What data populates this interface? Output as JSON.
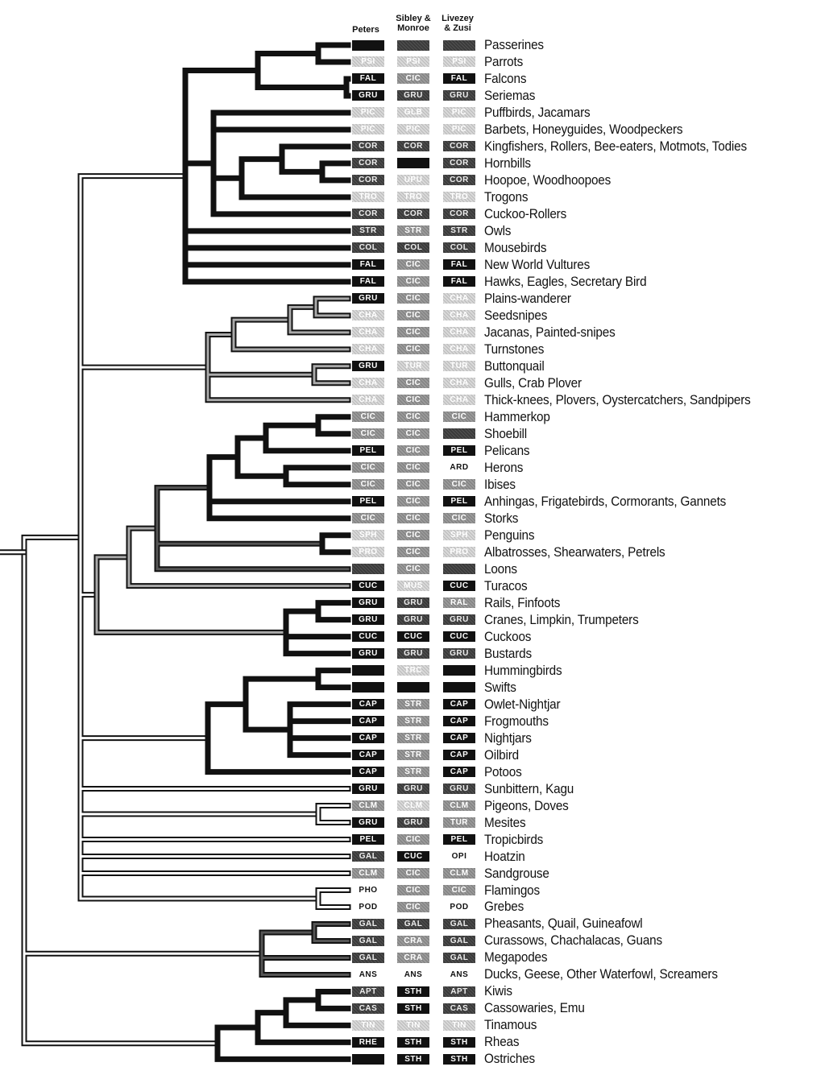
{
  "headers": {
    "peters": "Peters",
    "sibley": [
      "Sibley &",
      "Monroe"
    ],
    "livezey": [
      "Livezey",
      "& Zusi"
    ]
  },
  "rows": [
    {
      "name": "Passerines",
      "p": {
        "t": "",
        "s": "black"
      },
      "s": {
        "t": "",
        "s": "dark"
      },
      "l": {
        "t": "",
        "s": "dark"
      }
    },
    {
      "name": "Parrots",
      "p": {
        "t": "PSI",
        "s": "light"
      },
      "s": {
        "t": "PSI",
        "s": "light"
      },
      "l": {
        "t": "PSI",
        "s": "light"
      }
    },
    {
      "name": "Falcons",
      "p": {
        "t": "FAL",
        "s": "black"
      },
      "s": {
        "t": "CIC",
        "s": "mid"
      },
      "l": {
        "t": "FAL",
        "s": "black"
      }
    },
    {
      "name": "Seriemas",
      "p": {
        "t": "GRU",
        "s": "black"
      },
      "s": {
        "t": "GRU",
        "s": "dark"
      },
      "l": {
        "t": "GRU",
        "s": "dark"
      }
    },
    {
      "name": "Puffbirds, Jacamars",
      "p": {
        "t": "PIC",
        "s": "light"
      },
      "s": {
        "t": "GLB",
        "s": "light"
      },
      "l": {
        "t": "PIC",
        "s": "light"
      }
    },
    {
      "name": "Barbets, Honeyguides, Woodpeckers",
      "p": {
        "t": "PIC",
        "s": "light"
      },
      "s": {
        "t": "PIC",
        "s": "light"
      },
      "l": {
        "t": "PIC",
        "s": "light"
      }
    },
    {
      "name": "Kingfishers, Rollers, Bee-eaters, Motmots, Todies",
      "p": {
        "t": "COR",
        "s": "dark"
      },
      "s": {
        "t": "COR",
        "s": "dark"
      },
      "l": {
        "t": "COR",
        "s": "dark"
      }
    },
    {
      "name": "Hornbills",
      "p": {
        "t": "COR",
        "s": "dark"
      },
      "s": {
        "t": "",
        "s": "black"
      },
      "l": {
        "t": "COR",
        "s": "dark"
      }
    },
    {
      "name": "Hoopoe, Woodhoopoes",
      "p": {
        "t": "COR",
        "s": "dark"
      },
      "s": {
        "t": "UPU",
        "s": "light"
      },
      "l": {
        "t": "COR",
        "s": "dark"
      }
    },
    {
      "name": "Trogons",
      "p": {
        "t": "TRO",
        "s": "light"
      },
      "s": {
        "t": "TRO",
        "s": "light"
      },
      "l": {
        "t": "TRO",
        "s": "light"
      }
    },
    {
      "name": "Cuckoo-Rollers",
      "p": {
        "t": "COR",
        "s": "dark"
      },
      "s": {
        "t": "COR",
        "s": "dark"
      },
      "l": {
        "t": "COR",
        "s": "dark"
      }
    },
    {
      "name": "Owls",
      "p": {
        "t": "STR",
        "s": "dark"
      },
      "s": {
        "t": "STR",
        "s": "mid"
      },
      "l": {
        "t": "STR",
        "s": "dark"
      }
    },
    {
      "name": "Mousebirds",
      "p": {
        "t": "COL",
        "s": "dark"
      },
      "s": {
        "t": "COL",
        "s": "dark"
      },
      "l": {
        "t": "COL",
        "s": "dark"
      }
    },
    {
      "name": "New World Vultures",
      "p": {
        "t": "FAL",
        "s": "black"
      },
      "s": {
        "t": "CIC",
        "s": "mid"
      },
      "l": {
        "t": "FAL",
        "s": "black"
      }
    },
    {
      "name": "Hawks, Eagles, Secretary Bird",
      "p": {
        "t": "FAL",
        "s": "black"
      },
      "s": {
        "t": "CIC",
        "s": "mid"
      },
      "l": {
        "t": "FAL",
        "s": "black"
      }
    },
    {
      "name": "Plains-wanderer",
      "p": {
        "t": "GRU",
        "s": "black"
      },
      "s": {
        "t": "CIC",
        "s": "mid"
      },
      "l": {
        "t": "CHA",
        "s": "light"
      }
    },
    {
      "name": "Seedsnipes",
      "p": {
        "t": "CHA",
        "s": "light"
      },
      "s": {
        "t": "CIC",
        "s": "mid"
      },
      "l": {
        "t": "CHA",
        "s": "light"
      }
    },
    {
      "name": "Jacanas, Painted-snipes",
      "p": {
        "t": "CHA",
        "s": "light"
      },
      "s": {
        "t": "CIC",
        "s": "mid"
      },
      "l": {
        "t": "CHA",
        "s": "light"
      }
    },
    {
      "name": "Turnstones",
      "p": {
        "t": "CHA",
        "s": "light"
      },
      "s": {
        "t": "CIC",
        "s": "mid"
      },
      "l": {
        "t": "CHA",
        "s": "light"
      }
    },
    {
      "name": "Buttonquail",
      "p": {
        "t": "GRU",
        "s": "black"
      },
      "s": {
        "t": "TUR",
        "s": "light"
      },
      "l": {
        "t": "TUR",
        "s": "light"
      }
    },
    {
      "name": "Gulls, Crab Plover",
      "p": {
        "t": "CHA",
        "s": "light"
      },
      "s": {
        "t": "CIC",
        "s": "mid"
      },
      "l": {
        "t": "CHA",
        "s": "light"
      }
    },
    {
      "name": "Thick-knees, Plovers, Oystercatchers, Sandpipers",
      "p": {
        "t": "CHA",
        "s": "light"
      },
      "s": {
        "t": "CIC",
        "s": "mid"
      },
      "l": {
        "t": "CHA",
        "s": "light"
      }
    },
    {
      "name": "Hammerkop",
      "p": {
        "t": "CIC",
        "s": "mid"
      },
      "s": {
        "t": "CIC",
        "s": "mid"
      },
      "l": {
        "t": "CIC",
        "s": "mid"
      }
    },
    {
      "name": "Shoebill",
      "p": {
        "t": "CIC",
        "s": "mid"
      },
      "s": {
        "t": "CIC",
        "s": "mid"
      },
      "l": {
        "t": "",
        "s": "dark"
      }
    },
    {
      "name": "Pelicans",
      "p": {
        "t": "PEL",
        "s": "black"
      },
      "s": {
        "t": "CIC",
        "s": "mid"
      },
      "l": {
        "t": "PEL",
        "s": "black"
      }
    },
    {
      "name": "Herons",
      "p": {
        "t": "CIC",
        "s": "mid"
      },
      "s": {
        "t": "CIC",
        "s": "mid"
      },
      "l": {
        "t": "ARD",
        "s": "white"
      }
    },
    {
      "name": "Ibises",
      "p": {
        "t": "CIC",
        "s": "mid"
      },
      "s": {
        "t": "CIC",
        "s": "mid"
      },
      "l": {
        "t": "CIC",
        "s": "mid"
      }
    },
    {
      "name": "Anhingas, Frigatebirds, Cormorants, Gannets",
      "p": {
        "t": "PEL",
        "s": "black"
      },
      "s": {
        "t": "CIC",
        "s": "mid"
      },
      "l": {
        "t": "PEL",
        "s": "black"
      }
    },
    {
      "name": "Storks",
      "p": {
        "t": "CIC",
        "s": "mid"
      },
      "s": {
        "t": "CIC",
        "s": "mid"
      },
      "l": {
        "t": "CIC",
        "s": "mid"
      }
    },
    {
      "name": "Penguins",
      "p": {
        "t": "SPH",
        "s": "light"
      },
      "s": {
        "t": "CIC",
        "s": "mid"
      },
      "l": {
        "t": "SPH",
        "s": "light"
      }
    },
    {
      "name": "Albatrosses, Shearwaters, Petrels",
      "p": {
        "t": "PRO",
        "s": "light"
      },
      "s": {
        "t": "CIC",
        "s": "mid"
      },
      "l": {
        "t": "PRO",
        "s": "light"
      }
    },
    {
      "name": "Loons",
      "p": {
        "t": "",
        "s": "dark"
      },
      "s": {
        "t": "CIC",
        "s": "mid"
      },
      "l": {
        "t": "",
        "s": "dark"
      }
    },
    {
      "name": "Turacos",
      "p": {
        "t": "CUC",
        "s": "black"
      },
      "s": {
        "t": "MUS",
        "s": "light"
      },
      "l": {
        "t": "CUC",
        "s": "black"
      }
    },
    {
      "name": "Rails, Finfoots",
      "p": {
        "t": "GRU",
        "s": "black"
      },
      "s": {
        "t": "GRU",
        "s": "dark"
      },
      "l": {
        "t": "RAL",
        "s": "mid"
      }
    },
    {
      "name": "Cranes, Limpkin, Trumpeters",
      "p": {
        "t": "GRU",
        "s": "black"
      },
      "s": {
        "t": "GRU",
        "s": "dark"
      },
      "l": {
        "t": "GRU",
        "s": "dark"
      }
    },
    {
      "name": "Cuckoos",
      "p": {
        "t": "CUC",
        "s": "black"
      },
      "s": {
        "t": "CUC",
        "s": "black"
      },
      "l": {
        "t": "CUC",
        "s": "black"
      }
    },
    {
      "name": "Bustards",
      "p": {
        "t": "GRU",
        "s": "black"
      },
      "s": {
        "t": "GRU",
        "s": "dark"
      },
      "l": {
        "t": "GRU",
        "s": "dark"
      }
    },
    {
      "name": "Hummingbirds",
      "p": {
        "t": "",
        "s": "black"
      },
      "s": {
        "t": "TRC",
        "s": "light"
      },
      "l": {
        "t": "",
        "s": "black"
      }
    },
    {
      "name": "Swifts",
      "p": {
        "t": "",
        "s": "black"
      },
      "s": {
        "t": "",
        "s": "black"
      },
      "l": {
        "t": "",
        "s": "black"
      }
    },
    {
      "name": "Owlet-Nightjar",
      "p": {
        "t": "CAP",
        "s": "black"
      },
      "s": {
        "t": "STR",
        "s": "mid"
      },
      "l": {
        "t": "CAP",
        "s": "black"
      }
    },
    {
      "name": "Frogmouths",
      "p": {
        "t": "CAP",
        "s": "black"
      },
      "s": {
        "t": "STR",
        "s": "mid"
      },
      "l": {
        "t": "CAP",
        "s": "black"
      }
    },
    {
      "name": "Nightjars",
      "p": {
        "t": "CAP",
        "s": "black"
      },
      "s": {
        "t": "STR",
        "s": "mid"
      },
      "l": {
        "t": "CAP",
        "s": "black"
      }
    },
    {
      "name": "Oilbird",
      "p": {
        "t": "CAP",
        "s": "black"
      },
      "s": {
        "t": "STR",
        "s": "mid"
      },
      "l": {
        "t": "CAP",
        "s": "black"
      }
    },
    {
      "name": "Potoos",
      "p": {
        "t": "CAP",
        "s": "black"
      },
      "s": {
        "t": "STR",
        "s": "mid"
      },
      "l": {
        "t": "CAP",
        "s": "black"
      }
    },
    {
      "name": "Sunbittern, Kagu",
      "p": {
        "t": "GRU",
        "s": "black"
      },
      "s": {
        "t": "GRU",
        "s": "dark"
      },
      "l": {
        "t": "GRU",
        "s": "dark"
      }
    },
    {
      "name": "Pigeons, Doves",
      "p": {
        "t": "CLM",
        "s": "mid"
      },
      "s": {
        "t": "CLM",
        "s": "light"
      },
      "l": {
        "t": "CLM",
        "s": "mid"
      }
    },
    {
      "name": "Mesites",
      "p": {
        "t": "GRU",
        "s": "black"
      },
      "s": {
        "t": "GRU",
        "s": "dark"
      },
      "l": {
        "t": "TUR",
        "s": "mid"
      }
    },
    {
      "name": "Tropicbirds",
      "p": {
        "t": "PEL",
        "s": "black"
      },
      "s": {
        "t": "CIC",
        "s": "mid"
      },
      "l": {
        "t": "PEL",
        "s": "black"
      }
    },
    {
      "name": "Hoatzin",
      "p": {
        "t": "GAL",
        "s": "dark"
      },
      "s": {
        "t": "CUC",
        "s": "black"
      },
      "l": {
        "t": "OPI",
        "s": "white"
      }
    },
    {
      "name": "Sandgrouse",
      "p": {
        "t": "CLM",
        "s": "mid"
      },
      "s": {
        "t": "CIC",
        "s": "mid"
      },
      "l": {
        "t": "CLM",
        "s": "mid"
      }
    },
    {
      "name": "Flamingos",
      "p": {
        "t": "PHO",
        "s": "white"
      },
      "s": {
        "t": "CIC",
        "s": "mid"
      },
      "l": {
        "t": "CIC",
        "s": "mid"
      }
    },
    {
      "name": "Grebes",
      "p": {
        "t": "POD",
        "s": "white"
      },
      "s": {
        "t": "CIC",
        "s": "mid"
      },
      "l": {
        "t": "POD",
        "s": "white"
      }
    },
    {
      "name": "Pheasants, Quail, Guineafowl",
      "p": {
        "t": "GAL",
        "s": "dark"
      },
      "s": {
        "t": "GAL",
        "s": "dark"
      },
      "l": {
        "t": "GAL",
        "s": "dark"
      }
    },
    {
      "name": "Curassows, Chachalacas, Guans",
      "p": {
        "t": "GAL",
        "s": "dark"
      },
      "s": {
        "t": "CRA",
        "s": "mid"
      },
      "l": {
        "t": "GAL",
        "s": "dark"
      }
    },
    {
      "name": "Megapodes",
      "p": {
        "t": "GAL",
        "s": "dark"
      },
      "s": {
        "t": "CRA",
        "s": "mid"
      },
      "l": {
        "t": "GAL",
        "s": "dark"
      }
    },
    {
      "name": "Ducks, Geese, Other Waterfowl, Screamers",
      "p": {
        "t": "ANS",
        "s": "white"
      },
      "s": {
        "t": "ANS",
        "s": "white"
      },
      "l": {
        "t": "ANS",
        "s": "white"
      }
    },
    {
      "name": "Kiwis",
      "p": {
        "t": "APT",
        "s": "dark"
      },
      "s": {
        "t": "STH",
        "s": "black"
      },
      "l": {
        "t": "APT",
        "s": "dark"
      }
    },
    {
      "name": "Cassowaries, Emu",
      "p": {
        "t": "CAS",
        "s": "dark"
      },
      "s": {
        "t": "STH",
        "s": "black"
      },
      "l": {
        "t": "CAS",
        "s": "dark"
      }
    },
    {
      "name": "Tinamous",
      "p": {
        "t": "TIN",
        "s": "light"
      },
      "s": {
        "t": "TIN",
        "s": "light"
      },
      "l": {
        "t": "TIN",
        "s": "light"
      }
    },
    {
      "name": "Rheas",
      "p": {
        "t": "RHE",
        "s": "black"
      },
      "s": {
        "t": "STH",
        "s": "black"
      },
      "l": {
        "t": "STH",
        "s": "black"
      }
    },
    {
      "name": "Ostriches",
      "p": {
        "t": "",
        "s": "black"
      },
      "s": {
        "t": "STH",
        "s": "black"
      },
      "l": {
        "t": "STH",
        "s": "black"
      }
    }
  ]
}
